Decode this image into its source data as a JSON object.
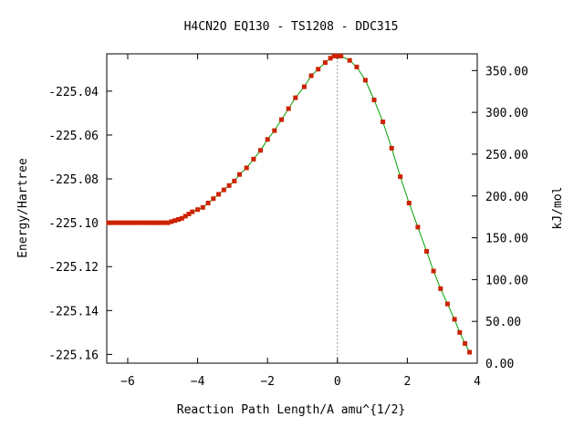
{
  "chart_data": {
    "type": "line",
    "title": "H4CN2O   EQ130 - TS1208 - DDC315",
    "xlabel": "Reaction Path Length/A amu^{1/2}",
    "ylabel_left": "Energy/Hartree",
    "ylabel_right": "kJ/mol",
    "xlim": [
      -6.6,
      4.0
    ],
    "ylim_left": [
      -225.164,
      -225.023
    ],
    "ylim_right": [
      0.0,
      370.0
    ],
    "x_ticks": [
      -6,
      -4,
      -2,
      0,
      2,
      4
    ],
    "x_tick_labels": [
      "−6",
      "−4",
      "−2",
      "0",
      "2",
      "4"
    ],
    "y_left_ticks": [
      -225.04,
      -225.06,
      -225.08,
      -225.1,
      -225.12,
      -225.14,
      -225.16
    ],
    "y_left_tick_labels": [
      "-225.04",
      "-225.06",
      "-225.08",
      "-225.10",
      "-225.12",
      "-225.14",
      "-225.16"
    ],
    "y_right_ticks": [
      350,
      300,
      250,
      200,
      150,
      100,
      50,
      0
    ],
    "y_right_tick_labels": [
      "350.00",
      "300.00",
      "250.00",
      "200.00",
      "150.00",
      "100.00",
      "50.00",
      "0.00"
    ],
    "ts_marker_x": 0.0,
    "line_color": "#00a000",
    "marker_color": "#cc2200",
    "series": [
      {
        "x": [
          -6.55,
          -6.45,
          -6.35,
          -6.25,
          -6.15,
          -6.05,
          -5.95,
          -5.85,
          -5.75,
          -5.65,
          -5.55,
          -5.45,
          -5.35,
          -5.25,
          -5.15,
          -5.05,
          -4.95,
          -4.85,
          -4.75,
          -4.65,
          -4.55,
          -4.45,
          -4.35,
          -4.25,
          -4.15,
          -4.0,
          -3.85,
          -3.7,
          -3.55,
          -3.4,
          -3.25,
          -3.1,
          -2.95,
          -2.8,
          -2.6,
          -2.4,
          -2.2,
          -2.0,
          -1.8,
          -1.6,
          -1.4,
          -1.2,
          -0.95,
          -0.75,
          -0.55,
          -0.35,
          -0.2,
          -0.1,
          0.0,
          0.1,
          0.35,
          0.55,
          0.8,
          1.05,
          1.3,
          1.55,
          1.8,
          2.05,
          2.3,
          2.55,
          2.75,
          2.95,
          3.15,
          3.35,
          3.5,
          3.65,
          3.78
        ],
        "y": [
          -225.1,
          -225.1,
          -225.1,
          -225.1,
          -225.1,
          -225.1,
          -225.1,
          -225.1,
          -225.1,
          -225.1,
          -225.1,
          -225.1,
          -225.1,
          -225.1,
          -225.1,
          -225.1,
          -225.1,
          -225.1,
          -225.0995,
          -225.099,
          -225.0985,
          -225.098,
          -225.097,
          -225.096,
          -225.095,
          -225.094,
          -225.093,
          -225.091,
          -225.089,
          -225.087,
          -225.085,
          -225.083,
          -225.081,
          -225.078,
          -225.075,
          -225.071,
          -225.067,
          -225.062,
          -225.058,
          -225.053,
          -225.048,
          -225.043,
          -225.038,
          -225.033,
          -225.03,
          -225.027,
          -225.025,
          -225.024,
          -225.024,
          -225.024,
          -225.026,
          -225.029,
          -225.035,
          -225.044,
          -225.054,
          -225.066,
          -225.079,
          -225.091,
          -225.102,
          -225.113,
          -225.122,
          -225.13,
          -225.137,
          -225.144,
          -225.15,
          -225.155,
          -225.159
        ]
      }
    ]
  }
}
